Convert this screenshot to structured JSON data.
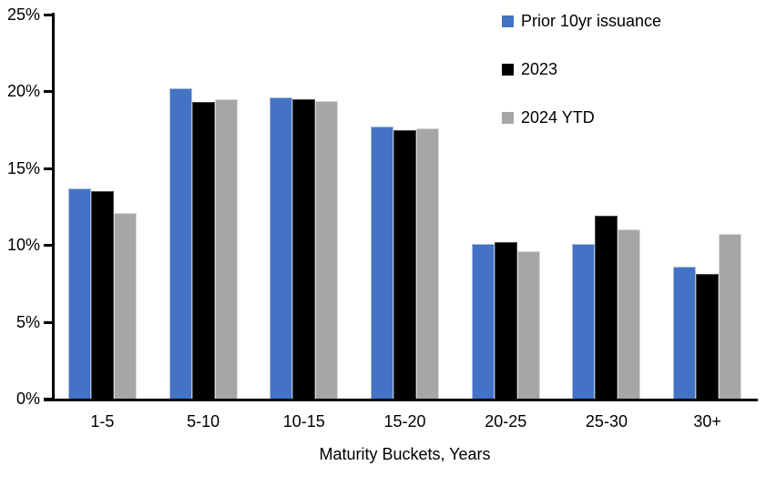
{
  "chart_data": {
    "type": "bar",
    "title": "",
    "xlabel": "Maturity Buckets, Years",
    "ylabel": "",
    "ylim": [
      0,
      25
    ],
    "grid": false,
    "legend_position": "top-right",
    "yticks": [
      {
        "label": "0%",
        "value": 0
      },
      {
        "label": "5%",
        "value": 5
      },
      {
        "label": "10%",
        "value": 10
      },
      {
        "label": "15%",
        "value": 15
      },
      {
        "label": "20%",
        "value": 20
      },
      {
        "label": "25%",
        "value": 25
      }
    ],
    "categories": [
      "1-5",
      "5-10",
      "10-15",
      "15-20",
      "20-25",
      "25-30",
      "30+"
    ],
    "series": [
      {
        "name": "Prior 10yr issuance",
        "color": "#4472C4",
        "border_color": "#A9C1E9",
        "values": [
          13.7,
          20.2,
          19.6,
          17.7,
          10.1,
          10.1,
          8.6
        ]
      },
      {
        "name": "2023",
        "color": "#000000",
        "border_color": "#4D4D4D",
        "values": [
          13.5,
          19.3,
          19.5,
          17.5,
          10.2,
          11.9,
          8.1
        ]
      },
      {
        "name": "2024 YTD",
        "color": "#A6A6A6",
        "border_color": "#D9D9D9",
        "values": [
          12.1,
          19.5,
          19.4,
          17.6,
          9.6,
          11.0,
          10.7
        ]
      }
    ]
  }
}
